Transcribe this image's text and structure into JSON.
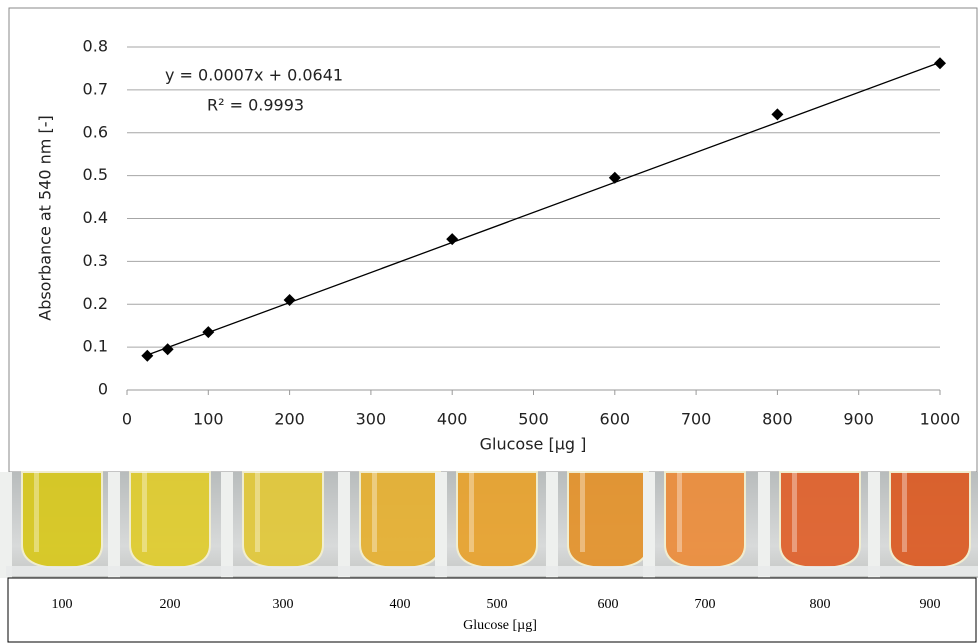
{
  "chart_data": {
    "type": "scatter",
    "xlabel": "Glucose [µg ]",
    "ylabel": "Absorbance at 540 nm  [-]",
    "x": [
      25,
      50,
      100,
      200,
      400,
      600,
      800,
      1000
    ],
    "values": [
      0.08,
      0.095,
      0.135,
      0.21,
      0.352,
      0.495,
      0.643,
      0.762
    ],
    "color": "#000000",
    "xlim": [
      0,
      1000
    ],
    "xticks": [
      0,
      100,
      200,
      300,
      400,
      500,
      600,
      700,
      800,
      900,
      1000
    ],
    "ylim": [
      0,
      0.8
    ],
    "yticks": [
      0,
      0.1,
      0.2,
      0.3,
      0.4,
      0.5,
      0.6,
      0.7,
      0.8
    ],
    "grid": true,
    "trendline": {
      "slope": 0.0007,
      "intercept": 0.0641
    },
    "annotations": [
      "y = 0.0007x + 0.0641",
      "R² = 0.9993"
    ]
  },
  "photo_scale": {
    "labels": [
      100,
      200,
      300,
      400,
      500,
      600,
      700,
      800,
      900
    ],
    "axis_label": "Glucose [µg]"
  }
}
